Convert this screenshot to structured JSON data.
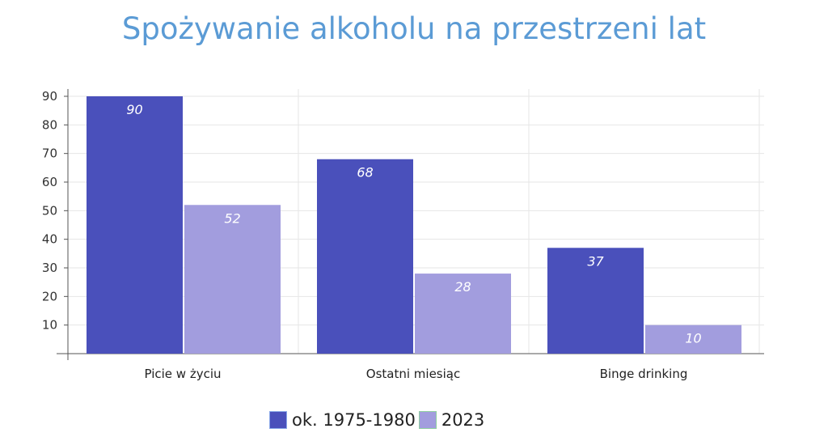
{
  "chart_data": {
    "type": "bar",
    "title": "Spożywanie alkoholu na przestrzeni lat",
    "categories": [
      "Picie w życiu",
      "Ostatni miesiąc",
      "Binge drinking"
    ],
    "series": [
      {
        "name": "ok. 1975-1980",
        "values": [
          90,
          68,
          37
        ],
        "color": "#4a50bb"
      },
      {
        "name": "2023",
        "values": [
          52,
          28,
          10
        ],
        "color": "#a29dde"
      }
    ],
    "yticks": [
      10,
      20,
      30,
      40,
      50,
      60,
      70,
      80,
      90
    ],
    "ylim": [
      0,
      90
    ],
    "grid": true,
    "legend": "bottom",
    "data_labels": true
  }
}
